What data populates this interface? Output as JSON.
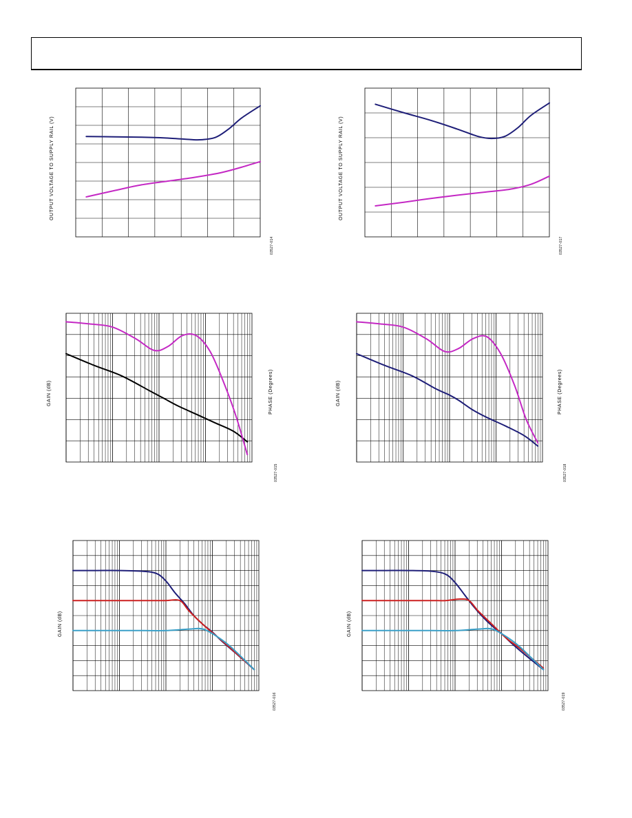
{
  "charts": [
    {
      "id": "fig-1",
      "ylabel": "OUTPUT VOLTAGE TO SUPPLY RAIL (V)",
      "rlabel": "",
      "fignum": "03527-014",
      "chart_data": {
        "type": "line",
        "xscale": "linear",
        "xlim": [
          0,
          7
        ],
        "ylim": [
          0,
          8
        ],
        "grid": true,
        "series": [
          {
            "color": "#1e1e78",
            "x": [
              0.4,
              1.5,
              2.5,
              3.4,
              4.1,
              4.7,
              5.3,
              5.8,
              6.3,
              7.0
            ],
            "y": [
              5.4,
              5.38,
              5.36,
              5.32,
              5.26,
              5.22,
              5.35,
              5.8,
              6.4,
              7.05
            ]
          },
          {
            "color": "#c428c4",
            "x": [
              0.4,
              1.5,
              2.5,
              3.5,
              4.5,
              5.5,
              6.3,
              7.0
            ],
            "y": [
              2.15,
              2.5,
              2.8,
              3.0,
              3.2,
              3.45,
              3.75,
              4.05
            ]
          }
        ]
      }
    },
    {
      "id": "fig-2",
      "ylabel": "OUTPUT VOLTAGE TO SUPPLY RAIL (V)",
      "rlabel": "",
      "fignum": "03527-017",
      "chart_data": {
        "type": "line",
        "xscale": "linear",
        "xlim": [
          0,
          7
        ],
        "ylim": [
          0,
          6
        ],
        "grid": true,
        "series": [
          {
            "color": "#1e1e78",
            "x": [
              0.4,
              1.5,
              2.5,
              3.5,
              4.3,
              4.8,
              5.3,
              5.8,
              6.3,
              7.0
            ],
            "y": [
              5.35,
              5.0,
              4.7,
              4.35,
              4.05,
              3.97,
              4.05,
              4.4,
              4.9,
              5.4
            ]
          },
          {
            "color": "#c428c4",
            "x": [
              0.4,
              1.5,
              2.5,
              3.5,
              4.5,
              5.5,
              6.3,
              7.0
            ],
            "y": [
              1.25,
              1.4,
              1.55,
              1.68,
              1.8,
              1.92,
              2.12,
              2.45
            ]
          }
        ]
      }
    },
    {
      "id": "fig-3",
      "ylabel": "GAIN (dB)",
      "rlabel": "PHASE (Degrees)",
      "fignum": "03527-015",
      "chart_data": {
        "type": "line",
        "xscale": "log",
        "xlim": [
          0,
          4
        ],
        "ylim": [
          0,
          7
        ],
        "grid": true,
        "series": [
          {
            "color": "#000000",
            "x": [
              0,
              0.6,
              1.2,
              1.8,
              2.1,
              2.4,
              2.8,
              3.2,
              3.6,
              3.9
            ],
            "y": [
              5.1,
              4.55,
              4.05,
              3.35,
              3.0,
              2.65,
              2.25,
              1.85,
              1.45,
              0.95
            ]
          },
          {
            "color": "#c428c4",
            "x": [
              0,
              0.5,
              1.0,
              1.5,
              1.9,
              2.2,
              2.5,
              2.8,
              3.1,
              3.4,
              3.65,
              3.9
            ],
            "y": [
              6.6,
              6.5,
              6.35,
              5.8,
              5.25,
              5.45,
              5.95,
              5.95,
              5.2,
              3.7,
              2.2,
              0.35
            ]
          }
        ]
      }
    },
    {
      "id": "fig-4",
      "ylabel": "GAIN (dB)",
      "rlabel": "PHASE (Degrees)",
      "fignum": "03527-018",
      "chart_data": {
        "type": "line",
        "xscale": "log",
        "xlim": [
          0,
          4
        ],
        "ylim": [
          0,
          7
        ],
        "grid": true,
        "series": [
          {
            "color": "#1e1e78",
            "x": [
              0,
              0.6,
              1.2,
              1.7,
              2.0,
              2.2,
              2.5,
              2.8,
              3.2,
              3.6,
              3.9
            ],
            "y": [
              5.1,
              4.55,
              4.05,
              3.45,
              3.15,
              2.9,
              2.45,
              2.1,
              1.7,
              1.25,
              0.75
            ]
          },
          {
            "color": "#c428c4",
            "x": [
              0,
              0.5,
              1.0,
              1.5,
              1.9,
              2.2,
              2.5,
              2.8,
              3.1,
              3.4,
              3.65,
              3.9
            ],
            "y": [
              6.6,
              6.5,
              6.35,
              5.8,
              5.2,
              5.35,
              5.8,
              5.9,
              5.1,
              3.6,
              2.0,
              0.9
            ]
          }
        ]
      }
    },
    {
      "id": "fig-5",
      "ylabel": "GAIN (dB)",
      "rlabel": "",
      "fignum": "03527-016",
      "chart_data": {
        "type": "line",
        "xscale": "log",
        "xlim": [
          0,
          4
        ],
        "ylim": [
          0,
          10
        ],
        "grid": true,
        "series": [
          {
            "color": "#1e1e78",
            "x": [
              0,
              0.5,
              1.0,
              1.5,
              1.8,
              2.0,
              2.2,
              2.4,
              2.6,
              2.8,
              3.0,
              3.2,
              3.5,
              3.9
            ],
            "y": [
              8.0,
              8.0,
              8.0,
              7.95,
              7.8,
              7.3,
              6.5,
              5.8,
              5.0,
              4.4,
              3.9,
              3.3,
              2.5,
              1.4
            ]
          },
          {
            "color": "#cc2020",
            "x": [
              0,
              0.5,
              1.0,
              1.5,
              2.0,
              2.3,
              2.5,
              2.8,
              3.1,
              3.4,
              3.9
            ],
            "y": [
              6.0,
              6.0,
              6.0,
              6.0,
              6.0,
              6.0,
              5.3,
              4.4,
              3.6,
              2.8,
              1.4
            ]
          },
          {
            "color": "#3aa0c8",
            "x": [
              0,
              0.5,
              1.0,
              1.5,
              2.0,
              2.5,
              2.8,
              3.1,
              3.4,
              3.9
            ],
            "y": [
              4.0,
              4.0,
              4.0,
              4.0,
              4.0,
              4.1,
              4.1,
              3.6,
              2.9,
              1.4
            ]
          }
        ]
      }
    },
    {
      "id": "fig-6",
      "ylabel": "GAIN (dB)",
      "rlabel": "",
      "fignum": "03527-019",
      "chart_data": {
        "type": "line",
        "xscale": "log",
        "xlim": [
          0,
          4
        ],
        "ylim": [
          0,
          10
        ],
        "grid": true,
        "series": [
          {
            "color": "#1e1e78",
            "x": [
              0,
              0.5,
              1.0,
              1.5,
              1.8,
              2.0,
              2.2,
              2.4,
              2.6,
              2.8,
              3.0,
              3.2,
              3.5,
              3.9
            ],
            "y": [
              8.0,
              8.0,
              8.0,
              7.95,
              7.75,
              7.2,
              6.4,
              5.6,
              4.9,
              4.3,
              3.8,
              3.2,
              2.4,
              1.4
            ]
          },
          {
            "color": "#cc2020",
            "x": [
              0,
              0.5,
              1.0,
              1.5,
              1.8,
              2.1,
              2.3,
              2.5,
              2.8,
              3.1,
              3.4,
              3.9
            ],
            "y": [
              6.0,
              6.0,
              6.0,
              6.0,
              6.0,
              6.1,
              6.0,
              5.3,
              4.4,
              3.5,
              2.8,
              1.5
            ]
          },
          {
            "color": "#3aa0c8",
            "x": [
              0,
              0.5,
              1.0,
              1.5,
              2.0,
              2.5,
              2.8,
              3.1,
              3.4,
              3.9
            ],
            "y": [
              4.0,
              4.0,
              4.0,
              4.0,
              4.0,
              4.1,
              4.1,
              3.6,
              2.9,
              1.4
            ]
          }
        ]
      }
    }
  ]
}
